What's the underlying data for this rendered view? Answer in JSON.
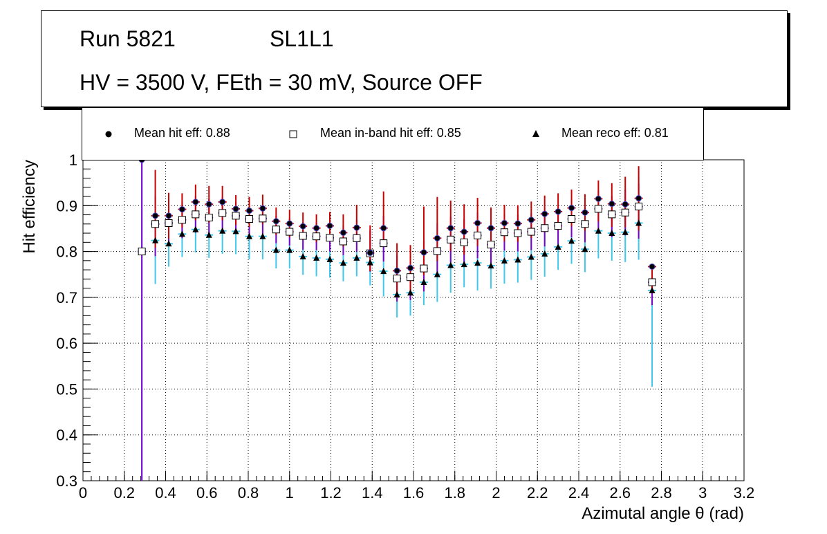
{
  "header": {
    "run": "Run 5821",
    "layer": "SL1L1",
    "conditions": "HV = 3500 V, FEth = 30 mV, Source OFF"
  },
  "legend": [
    {
      "marker": "circle",
      "label": "Mean hit  eff: 0.88"
    },
    {
      "marker": "open-square",
      "label": "Mean in-band hit eff: 0.85"
    },
    {
      "marker": "triangle",
      "label": "Mean reco eff: 0.81"
    }
  ],
  "colors": {
    "hit_error": "#cc0000",
    "inband_error": "#7a00cc",
    "reco_error": "#3ec8ee",
    "hit_marker": "#000000"
  },
  "chart_data": {
    "type": "scatter",
    "xlabel": "Azimutal angle θ (rad)",
    "ylabel": "Hit efficiency",
    "xlim": [
      0,
      3.2
    ],
    "ylim": [
      0.3,
      1.0
    ],
    "xticks": [
      "0",
      "0.2",
      "0.4",
      "0.6",
      "0.8",
      "1",
      "1.2",
      "1.4",
      "1.6",
      "1.8",
      "2",
      "2.2",
      "2.4",
      "2.6",
      "2.8",
      "3",
      "3.2"
    ],
    "yticks": [
      "0.3",
      "0.4",
      "0.5",
      "0.6",
      "0.7",
      "0.8",
      "0.9",
      "1"
    ],
    "grid": true,
    "x_bin_halfwidth": 0.02,
    "x": [
      0.285,
      0.35,
      0.415,
      0.48,
      0.545,
      0.61,
      0.675,
      0.74,
      0.805,
      0.87,
      0.935,
      1.0,
      1.065,
      1.13,
      1.195,
      1.26,
      1.325,
      1.39,
      1.455,
      1.52,
      1.585,
      1.65,
      1.715,
      1.78,
      1.845,
      1.91,
      1.975,
      2.04,
      2.105,
      2.17,
      2.235,
      2.3,
      2.365,
      2.43,
      2.495,
      2.56,
      2.625,
      2.69,
      2.755
    ],
    "series": [
      {
        "name": "Mean hit  eff: 0.88",
        "marker": "circle",
        "values": [
          1.0,
          0.878,
          0.878,
          0.892,
          0.908,
          0.903,
          0.908,
          0.893,
          0.889,
          0.894,
          0.866,
          0.861,
          0.855,
          0.851,
          0.856,
          0.841,
          0.852,
          0.797,
          0.851,
          0.758,
          0.764,
          0.798,
          0.829,
          0.851,
          0.843,
          0.862,
          0.851,
          0.862,
          0.861,
          0.869,
          0.882,
          0.887,
          0.895,
          0.885,
          0.915,
          0.904,
          0.903,
          0.916,
          0.767
        ],
        "err_low": [
          0.0,
          0.07,
          0.05,
          0.04,
          0.04,
          0.04,
          0.04,
          0.035,
          0.035,
          0.035,
          0.03,
          0.03,
          0.03,
          0.03,
          0.03,
          0.03,
          0.03,
          0.04,
          0.04,
          0.05,
          0.05,
          0.05,
          0.05,
          0.05,
          0.05,
          0.05,
          0.04,
          0.04,
          0.04,
          0.04,
          0.04,
          0.04,
          0.04,
          0.04,
          0.05,
          0.05,
          0.05,
          0.07,
          0.05
        ],
        "err_high": [
          0.0,
          0.1,
          0.05,
          0.035,
          0.038,
          0.04,
          0.035,
          0.03,
          0.03,
          0.03,
          0.03,
          0.03,
          0.03,
          0.03,
          0.03,
          0.04,
          0.05,
          0.06,
          0.08,
          0.06,
          0.05,
          0.1,
          0.09,
          0.06,
          0.06,
          0.055,
          0.045,
          0.04,
          0.04,
          0.04,
          0.04,
          0.04,
          0.04,
          0.04,
          0.04,
          0.045,
          0.06,
          0.07,
          0.0
        ]
      },
      {
        "name": "Mean in-band hit eff: 0.85",
        "marker": "open-square",
        "values": [
          0.8,
          0.86,
          0.862,
          0.869,
          0.881,
          0.874,
          0.884,
          0.878,
          0.871,
          0.872,
          0.848,
          0.843,
          0.834,
          0.833,
          0.83,
          0.822,
          0.829,
          0.796,
          0.818,
          0.741,
          0.744,
          0.763,
          0.801,
          0.826,
          0.82,
          0.835,
          0.815,
          0.842,
          0.84,
          0.843,
          0.851,
          0.856,
          0.871,
          0.86,
          0.893,
          0.881,
          0.885,
          0.898,
          0.733
        ],
        "err_low": [
          0.5,
          0.07,
          0.05,
          0.04,
          0.04,
          0.04,
          0.04,
          0.035,
          0.035,
          0.035,
          0.03,
          0.03,
          0.03,
          0.03,
          0.03,
          0.03,
          0.03,
          0.04,
          0.04,
          0.05,
          0.05,
          0.05,
          0.05,
          0.05,
          0.05,
          0.05,
          0.04,
          0.04,
          0.04,
          0.04,
          0.04,
          0.04,
          0.04,
          0.04,
          0.05,
          0.05,
          0.05,
          0.07,
          0.05
        ],
        "err_high": [
          0.2,
          0.06,
          0.05,
          0.04,
          0.04,
          0.04,
          0.035,
          0.03,
          0.03,
          0.03,
          0.03,
          0.03,
          0.03,
          0.03,
          0.03,
          0.035,
          0.04,
          0.05,
          0.06,
          0.05,
          0.04,
          0.06,
          0.06,
          0.05,
          0.05,
          0.05,
          0.04,
          0.04,
          0.04,
          0.04,
          0.04,
          0.04,
          0.04,
          0.04,
          0.04,
          0.04,
          0.05,
          0.05,
          0.0
        ]
      },
      {
        "name": "Mean reco eff: 0.81",
        "marker": "triangle",
        "values": [
          0.8,
          0.824,
          0.817,
          0.838,
          0.848,
          0.836,
          0.845,
          0.844,
          0.833,
          0.833,
          0.803,
          0.803,
          0.789,
          0.786,
          0.783,
          0.775,
          0.786,
          0.776,
          0.757,
          0.706,
          0.71,
          0.733,
          0.75,
          0.77,
          0.772,
          0.775,
          0.769,
          0.78,
          0.782,
          0.788,
          0.795,
          0.81,
          0.823,
          0.805,
          0.845,
          0.84,
          0.842,
          0.862,
          0.715
        ],
        "err_low": [
          0.5,
          0.095,
          0.05,
          0.05,
          0.05,
          0.05,
          0.05,
          0.05,
          0.05,
          0.05,
          0.04,
          0.04,
          0.04,
          0.04,
          0.04,
          0.04,
          0.04,
          0.05,
          0.055,
          0.05,
          0.05,
          0.05,
          0.06,
          0.06,
          0.05,
          0.06,
          0.05,
          0.05,
          0.05,
          0.05,
          0.05,
          0.05,
          0.05,
          0.05,
          0.06,
          0.06,
          0.065,
          0.08,
          0.21
        ],
        "err_high": [
          0.2,
          0.1,
          0.05,
          0.05,
          0.05,
          0.05,
          0.05,
          0.05,
          0.05,
          0.05,
          0.04,
          0.04,
          0.04,
          0.04,
          0.04,
          0.04,
          0.04,
          0.05,
          0.06,
          0.05,
          0.05,
          0.05,
          0.06,
          0.06,
          0.05,
          0.06,
          0.05,
          0.05,
          0.05,
          0.05,
          0.05,
          0.05,
          0.05,
          0.05,
          0.06,
          0.06,
          0.07,
          0.1,
          0.0
        ]
      }
    ]
  }
}
